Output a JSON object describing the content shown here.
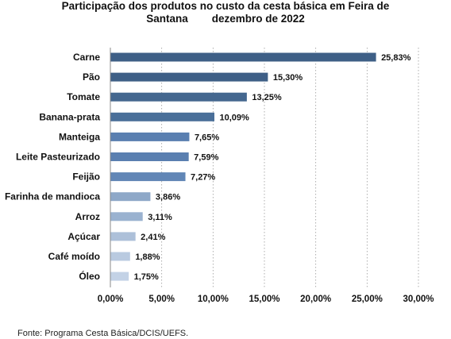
{
  "chart_data": {
    "type": "bar",
    "orientation": "horizontal",
    "title_line1": "Participação dos produtos no custo da cesta básica em Feira de",
    "title_line2": "Santana        dezembro de 2022",
    "categories": [
      "Carne",
      "Pão",
      "Tomate",
      "Banana-prata",
      "Manteiga",
      "Leite Pasteurizado",
      "Feijão",
      "Farinha de mandioca",
      "Arroz",
      "Açúcar",
      "Café moído",
      "Óleo"
    ],
    "values": [
      25.83,
      15.3,
      13.25,
      10.09,
      7.65,
      7.59,
      7.27,
      3.86,
      3.11,
      2.41,
      1.88,
      1.75
    ],
    "value_labels": [
      "25,83%",
      "15,30%",
      "13,25%",
      "10,09%",
      "7,65%",
      "7,59%",
      "7,27%",
      "3,86%",
      "3,11%",
      "2,41%",
      "1,88%",
      "1,75%"
    ],
    "bar_colors": [
      "#3e5f86",
      "#3e5f86",
      "#44678f",
      "#4a6f99",
      "#5a7fb0",
      "#5a7fb0",
      "#6186b6",
      "#8ea8c8",
      "#9ab2d0",
      "#adc0d9",
      "#b9cae0",
      "#c3d2e6"
    ],
    "xlim": [
      0,
      30
    ],
    "x_ticks": [
      0,
      5,
      10,
      15,
      20,
      25,
      30
    ],
    "x_tick_labels": [
      "0,00%",
      "5,00%",
      "10,00%",
      "15,00%",
      "20,00%",
      "25,00%",
      "30,00%"
    ],
    "grid": "vertical",
    "legend": "none"
  },
  "source": "Fonte: Programa Cesta Básica/DCIS/UEFS."
}
